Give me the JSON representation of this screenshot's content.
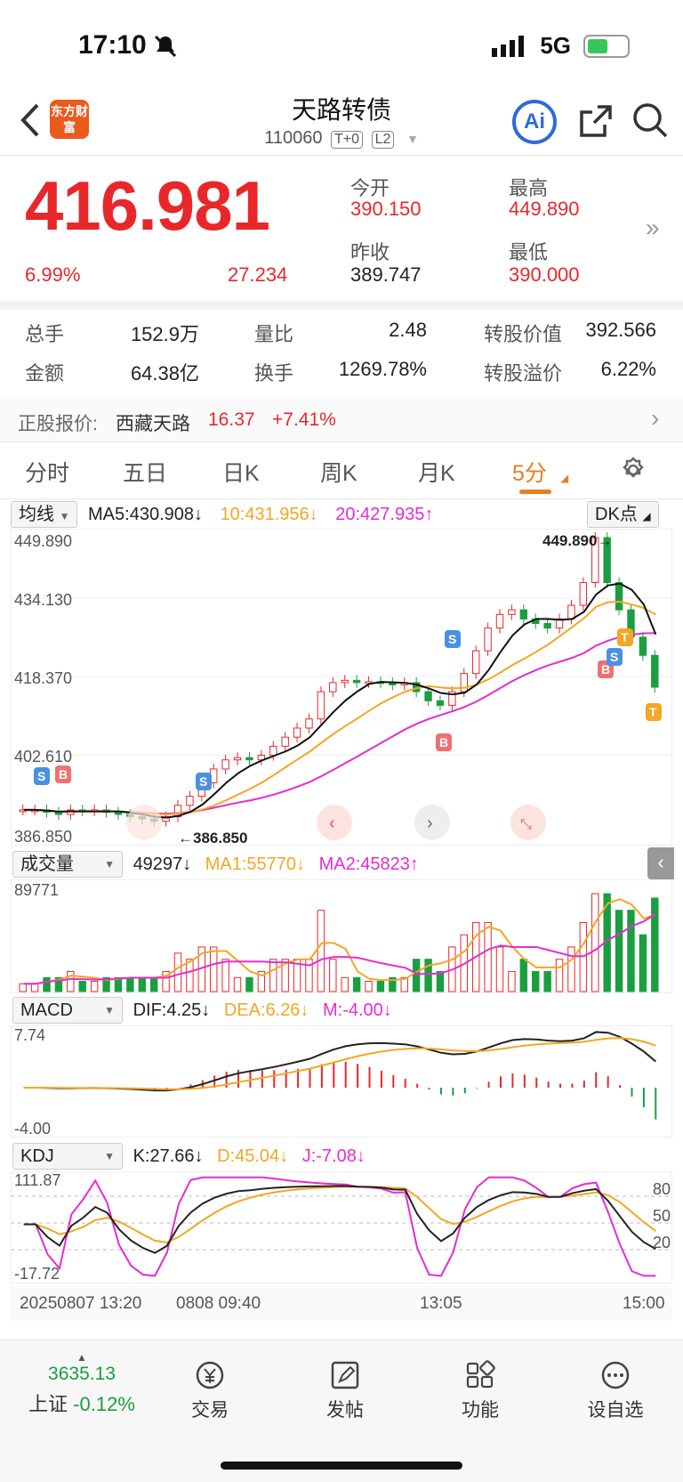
{
  "status": {
    "time": "17:10",
    "network": "5G"
  },
  "header": {
    "logo_text": "东方财富",
    "title": "天路转债",
    "code": "110060",
    "tag1": "T+0",
    "tag2": "L2",
    "ai_label": "Ai"
  },
  "quote": {
    "price": "416.981",
    "change_pct": "6.99%",
    "change": "27.234",
    "open_label": "今开",
    "open": "390.150",
    "high_label": "最高",
    "high": "449.890",
    "prevclose_label": "昨收",
    "prevclose": "389.747",
    "low_label": "最低",
    "low": "390.000"
  },
  "stats": {
    "vol_label": "总手",
    "vol": "152.9万",
    "ratio_label": "量比",
    "ratio": "2.48",
    "conv_value_label": "转股价值",
    "conv_value": "392.566",
    "amount_label": "金额",
    "amount": "64.38亿",
    "turnover_label": "换手",
    "turnover": "1269.78%",
    "premium_label": "转股溢价",
    "premium": "6.22%"
  },
  "underlying": {
    "label": "正股报价:",
    "name": "西藏天路",
    "price": "16.37",
    "change": "+7.41%"
  },
  "tabs": [
    "分时",
    "五日",
    "日K",
    "周K",
    "月K",
    "5分"
  ],
  "active_tab": "5分",
  "main_indicator": {
    "select": "均线",
    "ma5": "MA5:430.908↓",
    "ma10": "10:431.956↓",
    "ma20": "20:427.935↑",
    "dk_button": "DK点",
    "y_top": "449.890",
    "y_2": "434.130",
    "y_3": "418.370",
    "y_4": "402.610",
    "y_bottom": "386.850",
    "high_marker": "449.890→",
    "low_marker": "←386.850"
  },
  "volume": {
    "select": "成交量",
    "value": "49297↓",
    "ma1": "MA1:55770↓",
    "ma2": "MA2:45823↑",
    "max": "89771"
  },
  "macd": {
    "select": "MACD",
    "dif": "DIF:4.25↓",
    "dea": "DEA:6.26↓",
    "m": "M:-4.00↓",
    "max": "7.74",
    "min": "-4.00"
  },
  "kdj": {
    "select": "KDJ",
    "k": "K:27.66↓",
    "d": "D:45.04↓",
    "j": "J:-7.08↓",
    "max": "111.87",
    "min": "-17.72",
    "lv80": "80",
    "lv50": "50",
    "lv20": "20"
  },
  "time_axis": [
    "20250807 13:20",
    "0808 09:40",
    "13:05",
    "15:00"
  ],
  "bottom_nav": {
    "index_value": "3635.13",
    "index_name": "上证",
    "index_change": "-0.12%",
    "items": [
      "交易",
      "发帖",
      "功能",
      "设自选"
    ]
  },
  "colors": {
    "up": "#e8272b",
    "down": "#1a9e3f",
    "ma10": "#f5a623",
    "ma20": "#e62bd4",
    "accent": "#e67e22"
  },
  "chart_data": {
    "type": "candlestick",
    "title": "",
    "ylim": [
      386.85,
      449.89
    ],
    "close_series_approx": [
      390,
      390,
      389.5,
      389,
      390,
      389.8,
      390,
      389.5,
      389,
      388.5,
      388,
      387.5,
      388.5,
      391,
      393,
      396,
      399,
      401,
      401.5,
      401,
      402,
      404,
      406,
      408,
      410,
      416,
      418,
      418.5,
      418,
      418.2,
      418,
      417.5,
      418,
      416,
      414,
      413,
      416,
      420,
      425,
      430,
      433,
      434,
      432,
      431,
      430,
      432,
      435,
      440,
      449.89,
      440,
      434,
      428,
      424,
      417
    ]
  }
}
